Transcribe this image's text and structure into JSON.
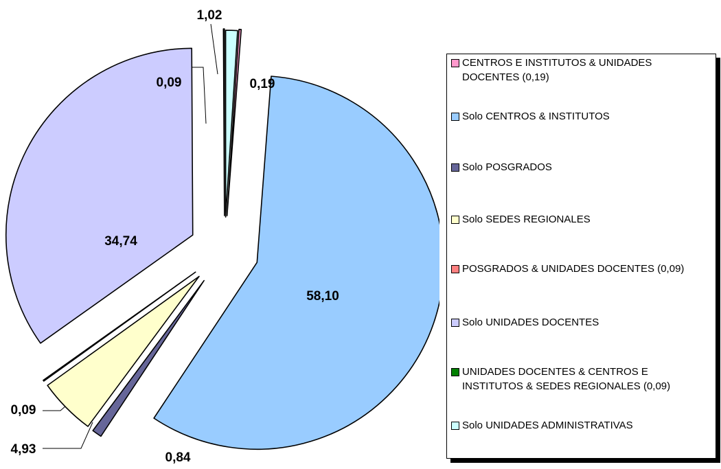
{
  "chart_data": {
    "type": "pie",
    "slices": [
      {
        "name": "Solo UNIDADES ADMINISTRATIVAS",
        "value": 1.02,
        "label": "1,02",
        "color": "#ccffff"
      },
      {
        "name": "CENTROS E INSTITUTOS & UNIDADES DOCENTES (0,19)",
        "value": 0.19,
        "label": "0,19",
        "color": "#ff99cc"
      },
      {
        "name": "Solo CENTROS & INSTITUTOS",
        "value": 58.1,
        "label": "58,10",
        "color": "#99ccff"
      },
      {
        "name": "Solo POSGRADOS",
        "value": 0.84,
        "label": "0,84",
        "color": "#666699"
      },
      {
        "name": "Solo SEDES REGIONALES",
        "value": 4.93,
        "label": "4,93",
        "color": "#ffffcc"
      },
      {
        "name": "UNIDADES DOCENTES & CENTROS E INSTITUTOS & SEDES REGIONALES (0,09)",
        "value": 0.09,
        "label": "0,09",
        "color": "#008000"
      },
      {
        "name": "Solo UNIDADES DOCENTES",
        "value": 34.74,
        "label": "34,74",
        "color": "#ccccff"
      },
      {
        "name": "POSGRADOS & UNIDADES DOCENTES (0,09)",
        "value": 0.09,
        "label": "0,09",
        "color": "#ff8080"
      }
    ],
    "legend": {
      "placement": "right",
      "entries": [
        {
          "text": "CENTROS E INSTITUTOS & UNIDADES DOCENTES (0,19)",
          "color": "#ff99cc"
        },
        {
          "text": "Solo CENTROS & INSTITUTOS",
          "color": "#99ccff"
        },
        {
          "text": "Solo POSGRADOS",
          "color": "#666699"
        },
        {
          "text": "Solo SEDES REGIONALES",
          "color": "#ffffcc"
        },
        {
          "text": "POSGRADOS & UNIDADES DOCENTES (0,09)",
          "color": "#ff8080"
        },
        {
          "text": "Solo UNIDADES DOCENTES",
          "color": "#ccccff"
        },
        {
          "text": "UNIDADES DOCENTES & CENTROS E INSTITUTOS & SEDES REGIONALES (0,09)",
          "color": "#008000"
        },
        {
          "text": "Solo UNIDADES ADMINISTRATIVAS",
          "color": "#ccffff"
        }
      ]
    }
  }
}
